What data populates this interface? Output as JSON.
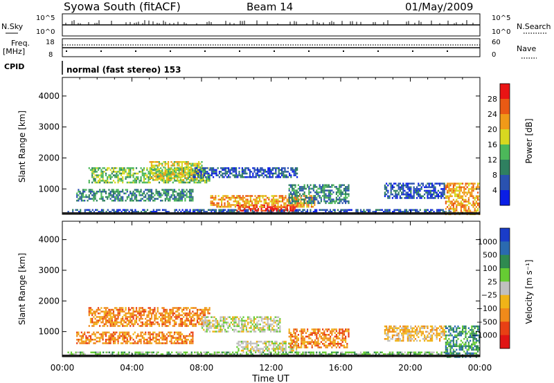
{
  "header": {
    "station": "Syowa South (fitACF)",
    "beam": "Beam 14",
    "date": "01/May/2009"
  },
  "left_labels": {
    "nsky": "N.Sky",
    "freq": "Freq.",
    "mhz": "[MHz]",
    "cpid": "CPID"
  },
  "right_labels": {
    "nsearch": "N.Search",
    "nave": "Nave"
  },
  "noise_panel": {
    "left_ticks": [
      "10^5",
      "10^0"
    ],
    "right_ticks": [
      "10^5",
      "10^0"
    ]
  },
  "freq_panel": {
    "left_ticks": [
      "18",
      "8"
    ],
    "right_ticks": [
      "60",
      "0"
    ]
  },
  "cpid_text": "normal (fast stereo) 153",
  "x_axis": {
    "label": "Time UT",
    "ticks": [
      "00:00",
      "04:00",
      "08:00",
      "12:00",
      "16:00",
      "20:00",
      "00:00"
    ]
  },
  "chart_data": [
    {
      "type": "heatmap",
      "panel": "power",
      "ylabel": "Slant Range [km]",
      "y_ticks": [
        "1000",
        "2000",
        "3000",
        "4000"
      ],
      "ylim": [
        180,
        4600
      ],
      "xlim": [
        0,
        24
      ],
      "colorbar": {
        "label": "Power [dB]",
        "ticks": [
          "4",
          "8",
          "12",
          "16",
          "20",
          "24",
          "28"
        ],
        "colors": [
          "#0a1ee6",
          "#2a52b0",
          "#2f8060",
          "#4cb85a",
          "#d8d820",
          "#f09a18",
          "#ea5a14",
          "#ea1414"
        ]
      },
      "regions": [
        {
          "t0": 0.3,
          "t1": 22.5,
          "r0": 200,
          "r1": 350,
          "level": 1
        },
        {
          "t0": 0.8,
          "t1": 7.5,
          "r0": 600,
          "r1": 1000,
          "level": 2
        },
        {
          "t0": 1.5,
          "t1": 8.5,
          "r0": 1200,
          "r1": 1700,
          "level": 3
        },
        {
          "t0": 5.0,
          "t1": 8.0,
          "r0": 1300,
          "r1": 1900,
          "level": 4
        },
        {
          "t0": 7.5,
          "t1": 13.5,
          "r0": 1400,
          "r1": 1700,
          "level": 1
        },
        {
          "t0": 10.0,
          "t1": 13.5,
          "r0": 300,
          "r1": 500,
          "level": 7
        },
        {
          "t0": 8.5,
          "t1": 14.5,
          "r0": 450,
          "r1": 800,
          "level": 5
        },
        {
          "t0": 13.0,
          "t1": 16.5,
          "r0": 550,
          "r1": 1150,
          "level": 2
        },
        {
          "t0": 18.5,
          "t1": 22.0,
          "r0": 700,
          "r1": 1200,
          "level": 1
        },
        {
          "t0": 22.0,
          "t1": 24.0,
          "r0": 200,
          "r1": 1200,
          "level": 5
        }
      ]
    },
    {
      "type": "heatmap",
      "panel": "velocity",
      "ylabel": "Slant Range [km]",
      "y_ticks": [
        "1000",
        "2000",
        "3000",
        "4000"
      ],
      "ylim": [
        180,
        4600
      ],
      "xlim": [
        0,
        24
      ],
      "colorbar": {
        "label": "Velocity [m s⁻¹]",
        "ticks": [
          "1000",
          "500",
          "100",
          "25",
          "−25",
          "−100",
          "−500",
          "−1000"
        ],
        "colors": [
          "#1a3cc8",
          "#2a6ab0",
          "#2f8a50",
          "#66cc33",
          "#c0c0c0",
          "#f0b418",
          "#f08a1a",
          "#e84014",
          "#e01414"
        ]
      },
      "regions": [
        {
          "t0": 0.3,
          "t1": 22.5,
          "r0": 200,
          "r1": 350,
          "level": 3
        },
        {
          "t0": 0.8,
          "t1": 7.5,
          "r0": 600,
          "r1": 1000,
          "level": 6
        },
        {
          "t0": 1.5,
          "t1": 8.5,
          "r0": 1200,
          "r1": 1800,
          "level": 6
        },
        {
          "t0": 8.0,
          "t1": 12.5,
          "r0": 1000,
          "r1": 1500,
          "level": 4
        },
        {
          "t0": 10.0,
          "t1": 13.5,
          "r0": 400,
          "r1": 700,
          "level": 4
        },
        {
          "t0": 13.0,
          "t1": 16.5,
          "r0": 500,
          "r1": 1100,
          "level": 6
        },
        {
          "t0": 18.5,
          "t1": 22.0,
          "r0": 700,
          "r1": 1200,
          "level": 5
        },
        {
          "t0": 22.0,
          "t1": 24.0,
          "r0": 200,
          "r1": 1200,
          "level": 2
        }
      ]
    }
  ]
}
